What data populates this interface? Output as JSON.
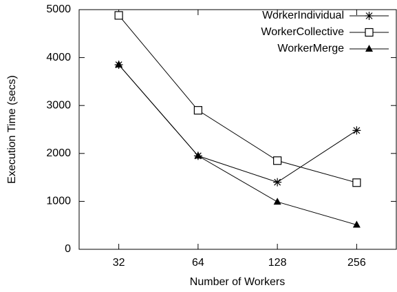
{
  "chart_data": {
    "type": "line",
    "x_label": "Number of Workers",
    "y_label": "Execution Time (secs)",
    "categories": [
      "32",
      "64",
      "128",
      "256"
    ],
    "series": [
      {
        "name": "WorkerIndividual",
        "color": "#000000",
        "marker": "star",
        "values": [
          3850,
          1950,
          1400,
          2480
        ]
      },
      {
        "name": "WorkerCollective",
        "color": "#000000",
        "marker": "open-square",
        "values": [
          4880,
          2900,
          1850,
          1390
        ]
      },
      {
        "name": "WorkerMerge",
        "color": "#000000",
        "marker": "filled-triangle",
        "values": [
          3850,
          1950,
          990,
          510
        ]
      }
    ],
    "ylim": [
      0,
      5000
    ],
    "yticks": [
      0,
      1000,
      2000,
      3000,
      4000,
      5000
    ],
    "legend": "upper right"
  }
}
